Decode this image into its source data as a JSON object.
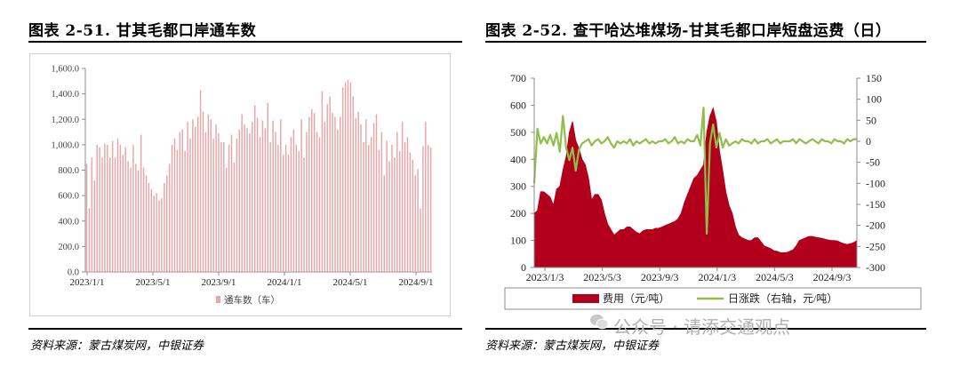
{
  "left": {
    "title": "图表 2-51. 甘其毛都口岸通车数",
    "source": "资料来源：蒙古煤炭网，中银证券"
  },
  "right": {
    "title": "图表 2-52. 查干哈达堆煤场-甘其毛都口岸短盘运费（日）",
    "source": "资料来源：蒙古煤炭网，中银证券"
  },
  "watermark": "公众号 · 请添交通观点",
  "colors": {
    "bars_left": "#e8a6a8",
    "fee": "#b2001c",
    "change": "#8fbe4a",
    "axis": "#8c8c8c"
  },
  "chart_data": [
    {
      "type": "bar",
      "title": "",
      "xlabel": "",
      "ylabel": "",
      "ylim": [
        0,
        1600
      ],
      "yticks": [
        "0.0",
        "200.0",
        "400.0",
        "600.0",
        "800.0",
        "1,000.0",
        "1,200.0",
        "1,400.0",
        "1,600.0"
      ],
      "xticks": [
        "2023/1/1",
        "2023/5/1",
        "2023/9/1",
        "2024/1/1",
        "2024/5/1",
        "2024/9/1"
      ],
      "legend": [
        "通车数（车）"
      ],
      "legend_position": "bottom",
      "series": [
        {
          "name": "通车数（车）",
          "values": [
            850,
            500,
            900,
            720,
            1000,
            980,
            900,
            1010,
            1000,
            900,
            1030,
            900,
            1050,
            1000,
            920,
            980,
            870,
            820,
            1000,
            850,
            800,
            1080,
            820,
            760,
            700,
            650,
            600,
            620,
            560,
            580,
            700,
            760,
            850,
            1000,
            1050,
            960,
            1100,
            1120,
            950,
            1180,
            1050,
            1200,
            1140,
            1220,
            1430,
            1260,
            1100,
            1240,
            1200,
            1050,
            1160,
            1090,
            1020,
            1020,
            820,
            1000,
            1080,
            860,
            1050,
            1120,
            1240,
            1160,
            1130,
            1090,
            1180,
            1310,
            1210,
            1060,
            1190,
            1130,
            1330,
            1020,
            1190,
            1100,
            1000,
            1200,
            920,
            1000,
            920,
            1060,
            1120,
            1000,
            950,
            1200,
            900,
            1100,
            1220,
            1280,
            1250,
            1100,
            1060,
            1420,
            1180,
            1320,
            1380,
            1250,
            1220,
            1120,
            1220,
            1450,
            1490,
            1510,
            1490,
            1380,
            1210,
            1260,
            1160,
            1020,
            1200,
            1000,
            1060,
            1170,
            1240,
            960,
            1100,
            760,
            1030,
            870,
            1000,
            900,
            1100,
            950,
            1180,
            1020,
            1060,
            940,
            880,
            760,
            810,
            500,
            990,
            1180,
            1000,
            980
          ]
        }
      ]
    },
    {
      "type": "line",
      "title": "",
      "xlabel": "",
      "ylabel": "",
      "ylim": [
        0,
        700
      ],
      "y2lim": [
        -300,
        150
      ],
      "yticks": [
        0,
        100,
        200,
        300,
        400,
        500,
        600,
        700
      ],
      "y2ticks": [
        -300,
        -250,
        -200,
        -150,
        -100,
        -50,
        0,
        50,
        100,
        150
      ],
      "xticks": [
        "2023/1/3",
        "2023/5/3",
        "2023/9/3",
        "2024/1/3",
        "2024/5/3",
        "2024/9/3"
      ],
      "legend_position": "bottom",
      "series": [
        {
          "name": "费用（元/吨）",
          "kind": "area",
          "axis": "left",
          "values": [
            200,
            210,
            280,
            280,
            270,
            260,
            230,
            290,
            300,
            360,
            410,
            500,
            540,
            470,
            440,
            400,
            380,
            330,
            250,
            270,
            270,
            250,
            200,
            160,
            140,
            120,
            130,
            140,
            140,
            150,
            150,
            140,
            130,
            125,
            135,
            140,
            140,
            140,
            145,
            145,
            150,
            155,
            160,
            165,
            170,
            180,
            200,
            240,
            270,
            300,
            330,
            340,
            360,
            380,
            500,
            560,
            590,
            540,
            430,
            360,
            280,
            230,
            200,
            150,
            120,
            110,
            105,
            100,
            100,
            110,
            110,
            95,
            80,
            75,
            70,
            62,
            60,
            55,
            55,
            55,
            60,
            65,
            80,
            100,
            105,
            110,
            115,
            115,
            112,
            110,
            108,
            105,
            102,
            100,
            100,
            98,
            92,
            88,
            85,
            88,
            92,
            100
          ]
        },
        {
          "name": "日涨跌（右轴，元/吨）",
          "kind": "line",
          "axis": "right",
          "values": [
            -100,
            30,
            -5,
            10,
            -5,
            15,
            -10,
            20,
            -25,
            60,
            -15,
            -45,
            -15,
            -70,
            -20,
            -5,
            0,
            5,
            -10,
            0,
            5,
            -5,
            0,
            10,
            -5,
            -15,
            0,
            -5,
            0,
            -5,
            5,
            -10,
            0,
            -5,
            0,
            5,
            -5,
            0,
            -5,
            0,
            0,
            5,
            -5,
            0,
            10,
            -5,
            0,
            -5,
            5,
            0,
            0,
            15,
            -10,
            80,
            -220,
            -5,
            40,
            -15,
            20,
            -15,
            5,
            -10,
            -5,
            0,
            -5,
            5,
            0,
            0,
            -5,
            5,
            -5,
            0,
            0,
            5,
            -5,
            0,
            5,
            -5,
            0,
            0,
            0,
            5,
            -5,
            5,
            0,
            -5,
            0,
            5,
            0,
            -5,
            5,
            0,
            0,
            -5,
            5,
            0,
            0,
            -5,
            5,
            0,
            5,
            5
          ]
        }
      ]
    }
  ]
}
